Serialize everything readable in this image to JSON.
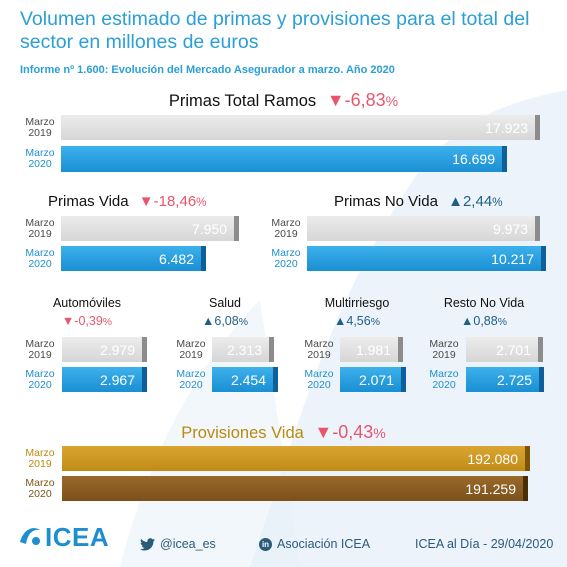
{
  "title": "Volumen estimado de primas y provisiones para el total del sector en millones de euros",
  "subtitle": "Informe nº 1.600: Evolución del Mercado Asegurador a marzo. Año 2020",
  "period_labels": {
    "prev": [
      "Marzo",
      "2019"
    ],
    "curr": [
      "Marzo",
      "2020"
    ]
  },
  "colors": {
    "accent": "#2a9fd8",
    "negative": "#e8566c",
    "positive": "#1f5f85",
    "bar_2019": "#d9d9d9",
    "bar_2020": "#1d8fd0",
    "prov_2019": "#c9951d",
    "prov_2020": "#8a5c20"
  },
  "chart_data": [
    {
      "type": "bar",
      "id": "primas_total",
      "title": "Primas Total Ramos",
      "change": {
        "arrow": "▼",
        "value": "-6,83",
        "unit": "%",
        "direction": "down"
      },
      "categories": [
        "Marzo 2019",
        "Marzo 2020"
      ],
      "values": [
        17923,
        16699
      ],
      "labels": [
        "17.923",
        "16.699"
      ],
      "xlim": [
        0,
        18600
      ]
    },
    {
      "type": "bar",
      "id": "primas_vida",
      "title": "Primas Vida",
      "change": {
        "arrow": "▼",
        "value": "-18,46",
        "unit": "%",
        "direction": "down"
      },
      "categories": [
        "Marzo 2019",
        "Marzo 2020"
      ],
      "values": [
        7950,
        6482
      ],
      "labels": [
        "7.950",
        "6.482"
      ],
      "xlim": [
        0,
        9200
      ]
    },
    {
      "type": "bar",
      "id": "primas_no_vida",
      "title": "Primas No Vida",
      "change": {
        "arrow": "▲",
        "value": "2,44",
        "unit": "%",
        "direction": "up"
      },
      "categories": [
        "Marzo 2019",
        "Marzo 2020"
      ],
      "values": [
        9973,
        10217
      ],
      "labels": [
        "9.973",
        "10.217"
      ],
      "xlim": [
        0,
        10217
      ]
    },
    {
      "type": "bar",
      "id": "automoviles",
      "title": "Automóviles",
      "change": {
        "arrow": "▼",
        "value": "-0,39",
        "unit": "%",
        "direction": "down"
      },
      "categories": [
        "Marzo 2019",
        "Marzo 2020"
      ],
      "values": [
        2979,
        2967
      ],
      "labels": [
        "2.979",
        "2.967"
      ],
      "xlim": [
        0,
        2979
      ]
    },
    {
      "type": "bar",
      "id": "salud",
      "title": "Salud",
      "change": {
        "arrow": "▲",
        "value": "6,08",
        "unit": "%",
        "direction": "up"
      },
      "categories": [
        "Marzo 2019",
        "Marzo 2020"
      ],
      "values": [
        2313,
        2454
      ],
      "labels": [
        "2.313",
        "2.454"
      ],
      "xlim": [
        0,
        2454
      ]
    },
    {
      "type": "bar",
      "id": "multirriesgo",
      "title": "Multirriesgo",
      "change": {
        "arrow": "▲",
        "value": "4,56",
        "unit": "%",
        "direction": "up"
      },
      "categories": [
        "Marzo 2019",
        "Marzo 2020"
      ],
      "values": [
        1981,
        2071
      ],
      "labels": [
        "1.981",
        "2.071"
      ],
      "xlim": [
        0,
        2071
      ]
    },
    {
      "type": "bar",
      "id": "resto_no_vida",
      "title": "Resto No Vida",
      "change": {
        "arrow": "▲",
        "value": "0,88",
        "unit": "%",
        "direction": "up"
      },
      "categories": [
        "Marzo 2019",
        "Marzo 2020"
      ],
      "values": [
        2701,
        2725
      ],
      "labels": [
        "2.701",
        "2.725"
      ],
      "xlim": [
        0,
        2725
      ]
    },
    {
      "type": "bar",
      "id": "provisiones_vida",
      "title": "Provisiones Vida",
      "change": {
        "arrow": "▼",
        "value": "-0,43",
        "unit": "%",
        "direction": "down"
      },
      "categories": [
        "Marzo 2019",
        "Marzo 2020"
      ],
      "values": [
        192080,
        191259
      ],
      "labels": [
        "192.080",
        "191.259"
      ],
      "xlim": [
        0,
        192080
      ]
    }
  ],
  "footer": {
    "logo": "ICEA",
    "logo_tagline": "",
    "twitter": "@icea_es",
    "linkedin": "Asociación ICEA",
    "date": "ICEA al Día - 29/04/2020"
  }
}
